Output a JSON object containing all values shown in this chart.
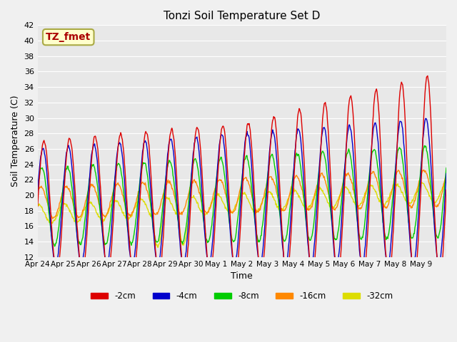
{
  "title": "Tonzi Soil Temperature Set D",
  "xlabel": "Time",
  "ylabel": "Soil Temperature (C)",
  "ylim": [
    12,
    42
  ],
  "yticks": [
    12,
    14,
    16,
    18,
    20,
    22,
    24,
    26,
    28,
    30,
    32,
    34,
    36,
    38,
    40,
    42
  ],
  "xtick_labels": [
    "Apr 24",
    "Apr 25",
    "Apr 26",
    "Apr 27",
    "Apr 28",
    "Apr 29",
    "Apr 30",
    "May 1",
    "May 2",
    "May 3",
    "May 4",
    "May 5",
    "May 6",
    "May 7",
    "May 8",
    "May 9"
  ],
  "legend_labels": [
    "-2cm",
    "-4cm",
    "-8cm",
    "-16cm",
    "-32cm"
  ],
  "line_colors": [
    "#dd0000",
    "#0000cc",
    "#00cc00",
    "#ff8800",
    "#dddd00"
  ],
  "annotation_text": "TZ_fmet",
  "annotation_color": "#aa0000",
  "annotation_bg": "#ffffcc",
  "annotation_edge": "#aaaa44",
  "n_days": 16,
  "points_per_day": 48,
  "depth_amplitudes": [
    8.5,
    7.5,
    5.0,
    2.0,
    1.2
  ],
  "depth_means_start": [
    18.5,
    18.5,
    18.5,
    19.0,
    17.5
  ],
  "depth_means_end": [
    20.5,
    20.5,
    20.5,
    21.0,
    20.5
  ],
  "depth_phase_offsets_hours": [
    0,
    1,
    2,
    3,
    5
  ],
  "amplitude_growth": [
    2.5,
    2.0,
    1.0,
    0.4,
    0.1
  ]
}
